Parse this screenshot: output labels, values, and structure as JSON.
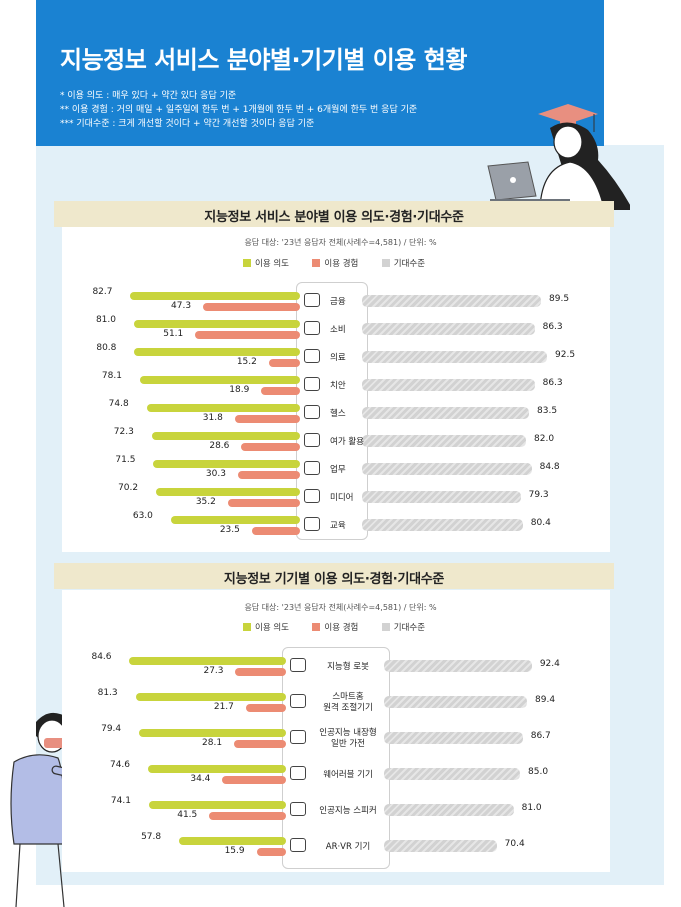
{
  "header": {
    "title": "지능정보 서비스 분야별·기기별 이용 현황",
    "notes": [
      "* 이용 의도 : 매우 있다 + 약간 있다 응답 기준",
      "** 이용 경험 : 거의 매일 + 일주일에 한두 번 + 1개월에 한두 번 + 6개월에 한두 번 응답 기준",
      "*** 기대수준 : 크게 개선할 것이다 + 약간 개선할 것이다 응답 기준"
    ]
  },
  "legend": {
    "intent": "이용 의도",
    "experience": "이용 경험",
    "expectation": "기대수준"
  },
  "colors": {
    "intent": "#c8d43c",
    "experience": "#ec8b73",
    "expectation": "#d2d2d2",
    "header": "#1a82d2",
    "section": "#efe8cc"
  },
  "chart_data": [
    {
      "type": "bar",
      "title": "지능정보 서비스 분야별 이용 의도·경험·기대수준",
      "note": "응답 대상: '23년 응답자 전체(사례수=4,581) / 단위: %",
      "categories": [
        "금융",
        "소비",
        "의료",
        "치안",
        "헬스",
        "여가 활용",
        "업무",
        "미디어",
        "교육"
      ],
      "icons": [
        "coin-icon",
        "wallet-icon",
        "medical-icon",
        "shield-icon",
        "heart-icon",
        "gamepad-icon",
        "briefcase-icon",
        "play-icon",
        "book-icon"
      ],
      "series": [
        {
          "name": "이용 의도",
          "values": [
            "82.7",
            "81.0",
            "80.8",
            "78.1",
            "74.8",
            "72.3",
            "71.5",
            "70.2",
            "63.0"
          ]
        },
        {
          "name": "이용 경험",
          "values": [
            "47.3",
            "51.1",
            "15.2",
            "18.9",
            "31.8",
            "28.6",
            "30.3",
            "35.2",
            "23.5"
          ]
        },
        {
          "name": "기대수준",
          "values": [
            "89.5",
            "86.3",
            "92.5",
            "86.3",
            "83.5",
            "82.0",
            "84.8",
            "79.3",
            "80.4"
          ]
        }
      ],
      "ylim": [
        0,
        100
      ]
    },
    {
      "type": "bar",
      "title": "지능정보 기기별 이용 의도·경험·기대수준",
      "note": "응답 대상: '23년 응답자 전체(사례수=4,581) / 단위: %",
      "categories": [
        "지능형 로봇",
        "스마트홈 원격 조절기기",
        "인공지능 내장형 일반 가전",
        "웨어러블 기기",
        "인공지능 스피커",
        "AR·VR 기기"
      ],
      "label_lines": [
        [
          "지능형 로봇"
        ],
        [
          "스마트홈",
          "원격 조절기기"
        ],
        [
          "인공지능 내장형",
          "일반 가전"
        ],
        [
          "웨어러블 기기"
        ],
        [
          "인공지능 스피커"
        ],
        [
          "AR·VR 기기"
        ]
      ],
      "icons": [
        "robot-icon",
        "smarthome-icon",
        "robot-vacuum-icon",
        "smartwatch-icon",
        "speaker-icon",
        "vr-headset-icon"
      ],
      "series": [
        {
          "name": "이용 의도",
          "values": [
            "84.6",
            "81.3",
            "79.4",
            "74.6",
            "74.1",
            "57.8"
          ]
        },
        {
          "name": "이용 경험",
          "values": [
            "27.3",
            "21.7",
            "28.1",
            "34.4",
            "41.5",
            "15.9"
          ]
        },
        {
          "name": "기대수준",
          "values": [
            "92.4",
            "89.4",
            "86.7",
            "85.0",
            "81.0",
            "70.4"
          ]
        }
      ],
      "ylim": [
        0,
        100
      ]
    }
  ]
}
